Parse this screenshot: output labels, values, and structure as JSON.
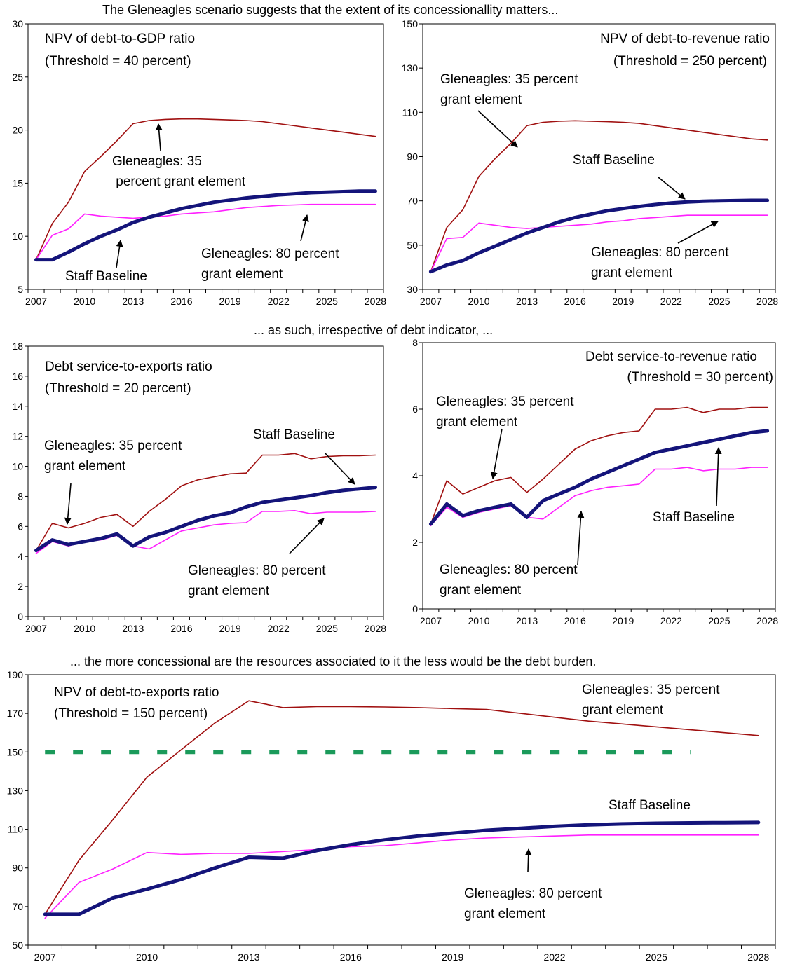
{
  "headings": {
    "top": "The Gleneagles scenario suggests that the extent of its concessionallity matters...",
    "middle": "... as such, irrespective of debt indicator,  ...",
    "bottom": "... the more concessional are the resources associated to it the less would be the debt burden."
  },
  "colors": {
    "baseline": "#14147a",
    "gleneagles35": "#a01010",
    "gleneagles80": "#ff20ff",
    "threshold": "#1a9a5a"
  },
  "chart_data": [
    {
      "type": "line",
      "title": "NPV of debt-to-GDP ratio",
      "subtitle": "(Threshold = 40 percent)",
      "x": [
        2007,
        2008,
        2009,
        2010,
        2011,
        2012,
        2013,
        2014,
        2015,
        2016,
        2017,
        2018,
        2019,
        2020,
        2021,
        2022,
        2023,
        2024,
        2025,
        2026,
        2027,
        2028
      ],
      "xticks": [
        "2007",
        "2010",
        "2013",
        "2016",
        "2019",
        "2022",
        "2025",
        "2028"
      ],
      "ylim": [
        5,
        30
      ],
      "yticks": [
        "5",
        "10",
        "15",
        "20",
        "25",
        "30"
      ],
      "series": [
        {
          "name": "Staff Baseline",
          "values": [
            7.8,
            7.8,
            8.5,
            9.3,
            10.0,
            10.6,
            11.3,
            11.8,
            12.2,
            12.6,
            12.9,
            13.2,
            13.4,
            13.6,
            13.75,
            13.9,
            14.0,
            14.1,
            14.15,
            14.2,
            14.25,
            14.25
          ]
        },
        {
          "name": "Gleneagles: 35 percent grant element",
          "values": [
            7.8,
            11.2,
            13.2,
            16.1,
            17.5,
            19.0,
            20.6,
            20.9,
            21.0,
            21.05,
            21.05,
            21.0,
            20.95,
            20.9,
            20.8,
            20.6,
            20.4,
            20.2,
            20.0,
            19.8,
            19.6,
            19.4
          ]
        },
        {
          "name": "Gleneagles: 80 percent grant element",
          "values": [
            7.8,
            10.1,
            10.7,
            12.1,
            11.9,
            11.8,
            11.7,
            11.8,
            11.9,
            12.1,
            12.2,
            12.3,
            12.5,
            12.7,
            12.8,
            12.9,
            12.95,
            13.0,
            13.0,
            13.0,
            13.0,
            13.0
          ]
        }
      ],
      "annotations": [
        {
          "lines": [
            "Gleneagles: 35",
            " percent grant element"
          ]
        },
        {
          "lines": [
            "Staff Baseline"
          ]
        },
        {
          "lines": [
            "Gleneagles: 80 percent",
            "grant element"
          ]
        }
      ]
    },
    {
      "type": "line",
      "title": "NPV of debt-to-revenue ratio",
      "subtitle": "(Threshold = 250 percent)",
      "x": [
        2007,
        2008,
        2009,
        2010,
        2011,
        2012,
        2013,
        2014,
        2015,
        2016,
        2017,
        2018,
        2019,
        2020,
        2021,
        2022,
        2023,
        2024,
        2025,
        2026,
        2027,
        2028
      ],
      "xticks": [
        "2007",
        "2010",
        "2013",
        "2016",
        "2019",
        "2022",
        "2025",
        "2028"
      ],
      "ylim": [
        30,
        150
      ],
      "yticks": [
        "30",
        "50",
        "70",
        "90",
        "110",
        "130",
        "150"
      ],
      "series": [
        {
          "name": "Staff Baseline",
          "values": [
            38,
            41,
            43,
            46.5,
            49.5,
            52.5,
            55.5,
            58,
            60.5,
            62.5,
            64,
            65.5,
            66.5,
            67.5,
            68.3,
            69,
            69.5,
            69.8,
            70,
            70.1,
            70.2,
            70.2
          ]
        },
        {
          "name": "Gleneagles: 35 percent grant element",
          "values": [
            38,
            58,
            66,
            81,
            89,
            96,
            104,
            105.5,
            106,
            106.2,
            106,
            105.8,
            105.5,
            105,
            104,
            103,
            102,
            101,
            100,
            99,
            98,
            97.5
          ]
        },
        {
          "name": "Gleneagles: 80 percent grant element",
          "values": [
            38,
            53,
            53.5,
            60,
            59,
            58,
            57.5,
            58,
            58.5,
            59,
            59.5,
            60.5,
            61,
            62,
            62.5,
            63,
            63.5,
            63.5,
            63.5,
            63.5,
            63.5,
            63.5
          ]
        }
      ],
      "annotations": [
        {
          "lines": [
            "Gleneagles: 35 percent",
            "grant element"
          ]
        },
        {
          "lines": [
            "Staff Baseline"
          ]
        },
        {
          "lines": [
            "Gleneagles: 80 percent",
            "grant element"
          ]
        }
      ]
    },
    {
      "type": "line",
      "title": "Debt service-to-exports ratio",
      "subtitle": "(Threshold = 20 percent)",
      "x": [
        2007,
        2008,
        2009,
        2010,
        2011,
        2012,
        2013,
        2014,
        2015,
        2016,
        2017,
        2018,
        2019,
        2020,
        2021,
        2022,
        2023,
        2024,
        2025,
        2026,
        2027,
        2028
      ],
      "xticks": [
        "2007",
        "2010",
        "2013",
        "2016",
        "2019",
        "2022",
        "2025",
        "2028"
      ],
      "ylim": [
        0,
        18
      ],
      "yticks": [
        "0",
        "2",
        "4",
        "6",
        "8",
        "10",
        "12",
        "14",
        "16",
        "18"
      ],
      "series": [
        {
          "name": "Staff Baseline",
          "values": [
            4.4,
            5.1,
            4.8,
            5.0,
            5.2,
            5.5,
            4.7,
            5.3,
            5.6,
            6.0,
            6.4,
            6.7,
            6.9,
            7.3,
            7.6,
            7.75,
            7.9,
            8.05,
            8.25,
            8.4,
            8.5,
            8.6
          ]
        },
        {
          "name": "Gleneagles: 35 percent grant element",
          "values": [
            4.4,
            6.2,
            5.9,
            6.2,
            6.6,
            6.8,
            6.0,
            7.0,
            7.8,
            8.7,
            9.1,
            9.3,
            9.5,
            9.55,
            10.75,
            10.75,
            10.85,
            10.5,
            10.65,
            10.7,
            10.7,
            10.75
          ]
        },
        {
          "name": "Gleneagles: 80 percent grant element",
          "values": [
            4.2,
            5.0,
            4.7,
            5.0,
            5.1,
            5.4,
            4.7,
            4.5,
            5.1,
            5.7,
            5.9,
            6.1,
            6.2,
            6.25,
            7.0,
            7.0,
            7.05,
            6.85,
            6.95,
            6.95,
            6.95,
            7.0
          ]
        }
      ],
      "annotations": [
        {
          "lines": [
            "Gleneagles: 35 percent",
            "grant element"
          ]
        },
        {
          "lines": [
            "Staff Baseline"
          ]
        },
        {
          "lines": [
            "Gleneagles: 80 percent",
            "grant element"
          ]
        }
      ]
    },
    {
      "type": "line",
      "title": "Debt service-to-revenue ratio",
      "subtitle": "(Threshold = 30 percent)",
      "x": [
        2007,
        2008,
        2009,
        2010,
        2011,
        2012,
        2013,
        2014,
        2015,
        2016,
        2017,
        2018,
        2019,
        2020,
        2021,
        2022,
        2023,
        2024,
        2025,
        2026,
        2027,
        2028
      ],
      "xticks": [
        "2007",
        "2010",
        "2013",
        "2016",
        "2019",
        "2022",
        "2025",
        "2028"
      ],
      "ylim": [
        0,
        8
      ],
      "yticks": [
        "0",
        "2",
        "4",
        "6",
        "8"
      ],
      "series": [
        {
          "name": "Staff Baseline",
          "values": [
            2.55,
            3.15,
            2.8,
            2.95,
            3.05,
            3.15,
            2.75,
            3.25,
            3.45,
            3.65,
            3.9,
            4.1,
            4.3,
            4.5,
            4.7,
            4.8,
            4.9,
            5.0,
            5.1,
            5.2,
            5.3,
            5.35
          ]
        },
        {
          "name": "Gleneagles: 35 percent grant element",
          "values": [
            2.55,
            3.85,
            3.45,
            3.65,
            3.85,
            3.95,
            3.5,
            3.9,
            4.35,
            4.8,
            5.05,
            5.2,
            5.3,
            5.35,
            6.0,
            6.0,
            6.05,
            5.9,
            6.0,
            6.0,
            6.05,
            6.05
          ]
        },
        {
          "name": "Gleneagles: 80 percent grant element",
          "values": [
            2.5,
            3.05,
            2.75,
            2.9,
            3.0,
            3.1,
            2.75,
            2.7,
            3.05,
            3.4,
            3.55,
            3.65,
            3.7,
            3.75,
            4.2,
            4.2,
            4.25,
            4.15,
            4.2,
            4.2,
            4.25,
            4.25
          ]
        }
      ],
      "annotations": [
        {
          "lines": [
            "Gleneagles: 35 percent",
            "grant element"
          ]
        },
        {
          "lines": [
            "Staff Baseline"
          ]
        },
        {
          "lines": [
            "Gleneagles: 80 percent",
            "grant element"
          ]
        }
      ]
    },
    {
      "type": "line",
      "title": "NPV of debt-to-exports ratio",
      "subtitle": "(Threshold = 150 percent)",
      "x": [
        2007,
        2008,
        2009,
        2010,
        2011,
        2012,
        2013,
        2014,
        2015,
        2016,
        2017,
        2018,
        2019,
        2020,
        2021,
        2022,
        2023,
        2024,
        2025,
        2026,
        2027,
        2028
      ],
      "xticks": [
        "2007",
        "2010",
        "2013",
        "2016",
        "2019",
        "2022",
        "2025",
        "2028"
      ],
      "ylim": [
        50,
        190
      ],
      "yticks": [
        "50",
        "70",
        "90",
        "110",
        "130",
        "150",
        "170",
        "190"
      ],
      "threshold": {
        "value": 150,
        "x_range": [
          2007,
          2026
        ]
      },
      "series": [
        {
          "name": "Staff Baseline",
          "values": [
            66,
            66,
            74.5,
            79,
            84,
            90,
            95.5,
            95,
            99,
            102,
            104.5,
            106.5,
            108,
            109.5,
            110.5,
            111.5,
            112.3,
            112.8,
            113.1,
            113.3,
            113.4,
            113.5
          ]
        },
        {
          "name": "Gleneagles: 35 percent grant element",
          "values": [
            66,
            94,
            115,
            137,
            151,
            165,
            176.5,
            173,
            173.5,
            173.5,
            173.3,
            173,
            172.5,
            172,
            170,
            168,
            166,
            164.5,
            163,
            161.5,
            160,
            158.5
          ]
        },
        {
          "name": "Gleneagles: 80 percent grant element",
          "values": [
            64,
            82.5,
            89.5,
            98,
            97,
            97.5,
            97.5,
            98.5,
            99.5,
            101,
            101.5,
            103,
            104.5,
            105.5,
            106,
            106.5,
            107,
            107,
            107,
            107,
            107,
            107
          ]
        }
      ],
      "annotations": [
        {
          "lines": [
            "Gleneagles: 35 percent",
            "grant element"
          ]
        },
        {
          "lines": [
            "Staff Baseline"
          ]
        },
        {
          "lines": [
            "Gleneagles: 80 percent",
            "grant element"
          ]
        }
      ]
    }
  ]
}
